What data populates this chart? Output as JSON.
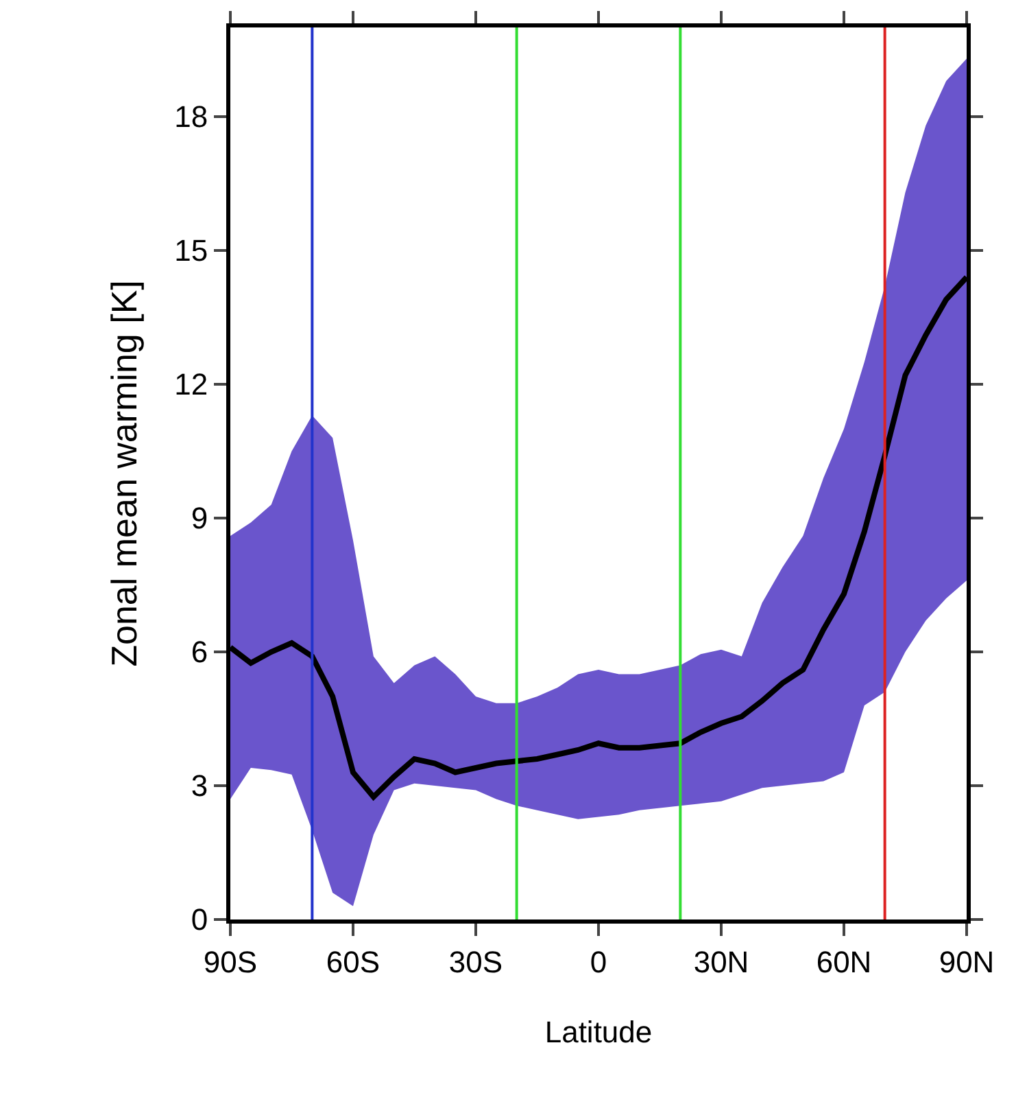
{
  "chart_data": {
    "type": "line",
    "xlabel": "Latitude",
    "ylabel": "Zonal mean warming [K]",
    "xlim": [
      -90,
      90
    ],
    "xticks": [
      {
        "value": -90,
        "label": "90S"
      },
      {
        "value": -60,
        "label": "60S"
      },
      {
        "value": -30,
        "label": "30S"
      },
      0,
      {
        "value": 30,
        "label": "30N"
      },
      {
        "value": 60,
        "label": "60N"
      },
      {
        "value": 90,
        "label": "90N"
      }
    ],
    "ylim": [
      0,
      20
    ],
    "yticks": [
      0,
      3,
      6,
      9,
      12,
      15,
      18
    ],
    "marker": "none",
    "line_style": "solid",
    "series": [
      {
        "color": "#000000",
        "x": [
          -90,
          -85,
          -80,
          -75,
          -70,
          -65,
          -60,
          -55,
          -50,
          -45,
          -40,
          -35,
          -30,
          -25,
          -20,
          -15,
          -10,
          -5,
          0,
          5,
          10,
          15,
          20,
          25,
          30,
          35,
          40,
          45,
          50,
          55,
          60,
          65,
          70,
          75,
          80,
          85,
          90
        ],
        "values": [
          6.1,
          5.75,
          6.0,
          6.2,
          5.9,
          5.0,
          3.3,
          2.75,
          3.2,
          3.6,
          3.5,
          3.3,
          3.4,
          3.5,
          3.55,
          3.6,
          3.7,
          3.8,
          3.95,
          3.85,
          3.85,
          3.9,
          3.95,
          4.2,
          4.4,
          4.55,
          4.9,
          5.3,
          5.6,
          6.5,
          7.3,
          8.7,
          10.4,
          12.2,
          13.1,
          13.9,
          14.4
        ],
        "upper": [
          8.6,
          8.9,
          9.3,
          10.5,
          11.3,
          10.8,
          8.5,
          5.9,
          5.3,
          5.7,
          5.9,
          5.5,
          5.0,
          4.85,
          4.85,
          5.0,
          5.2,
          5.5,
          5.6,
          5.5,
          5.5,
          5.6,
          5.7,
          5.95,
          6.05,
          5.9,
          7.1,
          7.9,
          8.6,
          9.9,
          11.0,
          12.5,
          14.2,
          16.3,
          17.8,
          18.8,
          19.3
        ],
        "lower": [
          2.7,
          3.4,
          3.35,
          3.25,
          2.0,
          0.6,
          0.3,
          1.9,
          2.9,
          3.05,
          3.0,
          2.95,
          2.9,
          2.7,
          2.55,
          2.45,
          2.35,
          2.25,
          2.3,
          2.35,
          2.45,
          2.5,
          2.55,
          2.6,
          2.65,
          2.8,
          2.95,
          3.0,
          3.05,
          3.1,
          3.3,
          4.8,
          5.1,
          6.0,
          6.7,
          7.2,
          7.6
        ]
      }
    ],
    "ref_lines": [
      {
        "axis": "x",
        "value": -70,
        "color": "#2233cc"
      },
      {
        "axis": "x",
        "value": -20,
        "color": "#33dd33"
      },
      {
        "axis": "x",
        "value": 20,
        "color": "#33dd33"
      },
      {
        "axis": "x",
        "value": 70,
        "color": "#dd2222"
      }
    ]
  }
}
